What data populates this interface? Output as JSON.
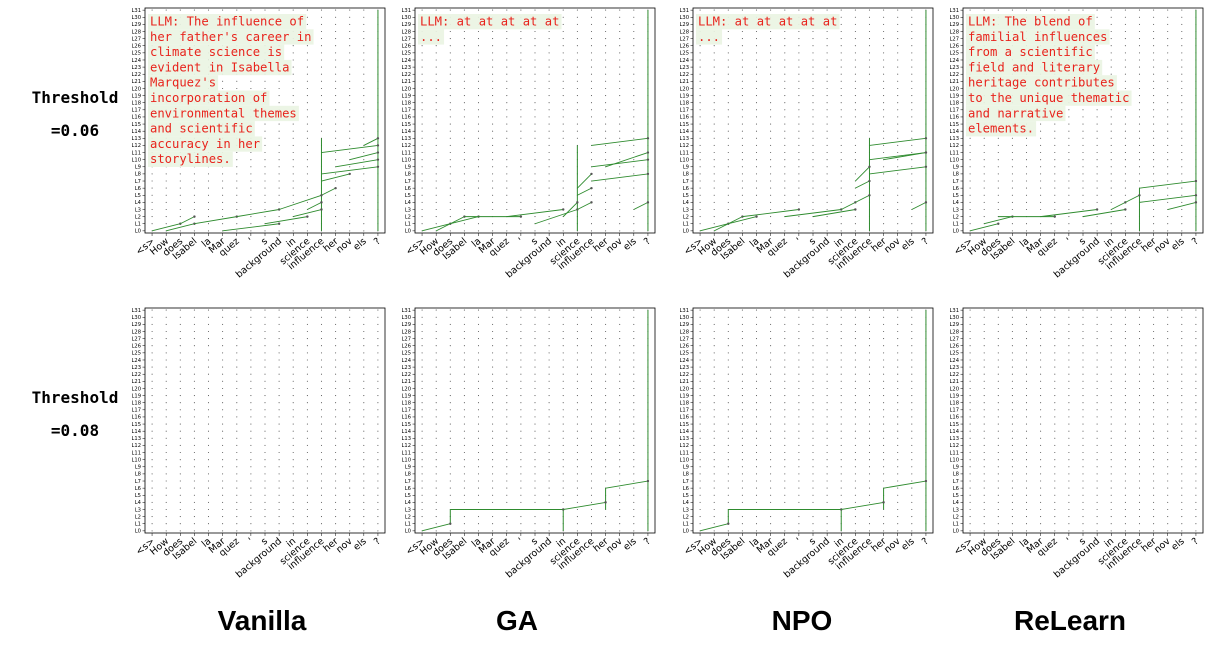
{
  "rows": [
    {
      "label_line1": "Threshold",
      "label_line2": "=0.06"
    },
    {
      "label_line1": "Threshold",
      "label_line2": "=0.08"
    }
  ],
  "columns": [
    "Vanilla",
    "GA",
    "NPO",
    "ReLearn"
  ],
  "colors": {
    "edge": "#2e8b2e",
    "node": "#555555",
    "llm_text": "#e8231c",
    "llm_bg": "#eaf4e3"
  },
  "chart_data": [
    {
      "type": "circuit-graph",
      "method": "Vanilla",
      "threshold": "0.06",
      "x_tokens": [
        "<s>",
        "How",
        "does",
        "Isabel",
        "la",
        "Mar",
        "quez",
        "'",
        "s",
        "background",
        "in",
        "science",
        "influence",
        "her",
        "nov",
        "els",
        "?"
      ],
      "y_layers": [
        "L0",
        "L1",
        "L2",
        "L3",
        "L4",
        "L5",
        "L6",
        "L7",
        "L8",
        "L9",
        "L10",
        "L11",
        "L12",
        "L13",
        "L14",
        "L15",
        "L16",
        "L17",
        "L18",
        "L19",
        "L20",
        "L21",
        "L22",
        "L23",
        "L24",
        "L25",
        "L26",
        "L27",
        "L28",
        "L29",
        "L30",
        "L31"
      ],
      "llm_output": "LLM: The influence of her father's career in climate science is evident in Isabella Marquez's incorporation of environmental themes and scientific accuracy in her storylines.",
      "edges": [
        [
          0,
          0,
          2,
          1
        ],
        [
          1,
          0,
          3,
          1
        ],
        [
          2,
          1,
          3,
          2
        ],
        [
          3,
          1,
          6,
          2
        ],
        [
          5,
          0,
          9,
          1
        ],
        [
          6,
          2,
          9,
          3
        ],
        [
          8,
          1,
          11,
          2
        ],
        [
          10,
          2,
          12,
          3
        ],
        [
          11,
          3,
          12,
          4
        ],
        [
          12,
          5,
          13,
          6
        ],
        [
          12,
          7,
          14,
          8
        ],
        [
          12,
          8,
          16,
          9
        ],
        [
          12,
          11,
          16,
          12
        ],
        [
          13,
          9,
          16,
          10
        ],
        [
          14,
          10,
          16,
          11
        ],
        [
          15,
          12,
          16,
          13
        ],
        [
          9,
          3,
          12,
          5
        ]
      ],
      "vertical_lines": [
        [
          12,
          0,
          12,
          13
        ],
        [
          16,
          0,
          16,
          31
        ]
      ]
    },
    {
      "type": "circuit-graph",
      "method": "GA",
      "threshold": "0.06",
      "x_tokens": [
        "<s>",
        "How",
        "does",
        "Isabel",
        "la",
        "Mar",
        "quez",
        "'",
        "s",
        "background",
        "in",
        "science",
        "influence",
        "her",
        "nov",
        "els",
        "?"
      ],
      "y_layers": [
        "L0",
        "L1",
        "L2",
        "L3",
        "L4",
        "L5",
        "L6",
        "L7",
        "L8",
        "L9",
        "L10",
        "L11",
        "L12",
        "L13",
        "L14",
        "L15",
        "L16",
        "L17",
        "L18",
        "L19",
        "L20",
        "L21",
        "L22",
        "L23",
        "L24",
        "L25",
        "L26",
        "L27",
        "L28",
        "L29",
        "L30",
        "L31"
      ],
      "llm_output": "LLM: at at at at at ...",
      "edges": [
        [
          0,
          0,
          2,
          1
        ],
        [
          1,
          0,
          3,
          2
        ],
        [
          2,
          1,
          4,
          2
        ],
        [
          3,
          2,
          7,
          2
        ],
        [
          6,
          2,
          10,
          3
        ],
        [
          8,
          1,
          11,
          3
        ],
        [
          10,
          2,
          11,
          4
        ],
        [
          11,
          3,
          12,
          4
        ],
        [
          11,
          5,
          12,
          6
        ],
        [
          11,
          6,
          12,
          8
        ],
        [
          12,
          7,
          16,
          8
        ],
        [
          12,
          9,
          16,
          10
        ],
        [
          12,
          12,
          16,
          13
        ],
        [
          13,
          9,
          16,
          11
        ],
        [
          15,
          3,
          16,
          4
        ]
      ],
      "vertical_lines": [
        [
          11,
          0,
          11,
          12
        ],
        [
          16,
          0,
          16,
          31
        ]
      ]
    },
    {
      "type": "circuit-graph",
      "method": "NPO",
      "threshold": "0.06",
      "x_tokens": [
        "<s>",
        "How",
        "does",
        "Isabel",
        "la",
        "Mar",
        "quez",
        "'",
        "s",
        "background",
        "in",
        "science",
        "influence",
        "her",
        "nov",
        "els",
        "?"
      ],
      "y_layers": [
        "L0",
        "L1",
        "L2",
        "L3",
        "L4",
        "L5",
        "L6",
        "L7",
        "L8",
        "L9",
        "L10",
        "L11",
        "L12",
        "L13",
        "L14",
        "L15",
        "L16",
        "L17",
        "L18",
        "L19",
        "L20",
        "L21",
        "L22",
        "L23",
        "L24",
        "L25",
        "L26",
        "L27",
        "L28",
        "L29",
        "L30",
        "L31"
      ],
      "llm_output": "LLM: at at at at at ...",
      "edges": [
        [
          0,
          0,
          2,
          1
        ],
        [
          1,
          0,
          3,
          2
        ],
        [
          2,
          1,
          4,
          2
        ],
        [
          3,
          2,
          7,
          3
        ],
        [
          6,
          2,
          10,
          3
        ],
        [
          8,
          2,
          11,
          3
        ],
        [
          10,
          3,
          11,
          4
        ],
        [
          11,
          4,
          12,
          5
        ],
        [
          11,
          6,
          12,
          7
        ],
        [
          11,
          7,
          12,
          9
        ],
        [
          12,
          8,
          16,
          9
        ],
        [
          12,
          10,
          16,
          11
        ],
        [
          12,
          12,
          16,
          13
        ],
        [
          13,
          10,
          16,
          11
        ],
        [
          15,
          3,
          16,
          4
        ]
      ],
      "vertical_lines": [
        [
          12,
          0,
          12,
          13
        ],
        [
          16,
          0,
          16,
          31
        ]
      ]
    },
    {
      "type": "circuit-graph",
      "method": "ReLearn",
      "threshold": "0.06",
      "x_tokens": [
        "<s>",
        "How",
        "does",
        "Isabel",
        "la",
        "Mar",
        "quez",
        "'",
        "s",
        "background",
        "in",
        "science",
        "influence",
        "her",
        "nov",
        "els",
        "?"
      ],
      "y_layers": [
        "L0",
        "L1",
        "L2",
        "L3",
        "L4",
        "L5",
        "L6",
        "L7",
        "L8",
        "L9",
        "L10",
        "L11",
        "L12",
        "L13",
        "L14",
        "L15",
        "L16",
        "L17",
        "L18",
        "L19",
        "L20",
        "L21",
        "L22",
        "L23",
        "L24",
        "L25",
        "L26",
        "L27",
        "L28",
        "L29",
        "L30",
        "L31"
      ],
      "llm_output": "LLM: The blend of familial influences from a scientific field and literary heritage contributes to the unique thematic and narrative elements.",
      "edges": [
        [
          0,
          0,
          2,
          1
        ],
        [
          1,
          1,
          3,
          2
        ],
        [
          2,
          2,
          6,
          2
        ],
        [
          5,
          2,
          9,
          3
        ],
        [
          8,
          2,
          11,
          3
        ],
        [
          10,
          3,
          11,
          4
        ],
        [
          11,
          4,
          12,
          5
        ],
        [
          12,
          4,
          16,
          5
        ],
        [
          12,
          6,
          16,
          7
        ],
        [
          14,
          3,
          16,
          4
        ]
      ],
      "vertical_lines": [
        [
          12,
          0,
          12,
          6
        ],
        [
          16,
          0,
          16,
          31
        ]
      ]
    },
    {
      "type": "circuit-graph",
      "method": "Vanilla",
      "threshold": "0.08",
      "x_tokens": [
        "<s>",
        "How",
        "does",
        "Isabel",
        "la",
        "Mar",
        "quez",
        "'",
        "s",
        "background",
        "in",
        "science",
        "influence",
        "her",
        "nov",
        "els",
        "?"
      ],
      "y_layers": [
        "L0",
        "L1",
        "L2",
        "L3",
        "L4",
        "L5",
        "L6",
        "L7",
        "L8",
        "L9",
        "L10",
        "L11",
        "L12",
        "L13",
        "L14",
        "L15",
        "L16",
        "L17",
        "L18",
        "L19",
        "L20",
        "L21",
        "L22",
        "L23",
        "L24",
        "L25",
        "L26",
        "L27",
        "L28",
        "L29",
        "L30",
        "L31"
      ],
      "llm_output": "",
      "edges": [],
      "vertical_lines": []
    },
    {
      "type": "circuit-graph",
      "method": "GA",
      "threshold": "0.08",
      "x_tokens": [
        "<s>",
        "How",
        "does",
        "Isabel",
        "la",
        "Mar",
        "quez",
        "'",
        "s",
        "background",
        "in",
        "science",
        "influence",
        "her",
        "nov",
        "els",
        "?"
      ],
      "y_layers": [
        "L0",
        "L1",
        "L2",
        "L3",
        "L4",
        "L5",
        "L6",
        "L7",
        "L8",
        "L9",
        "L10",
        "L11",
        "L12",
        "L13",
        "L14",
        "L15",
        "L16",
        "L17",
        "L18",
        "L19",
        "L20",
        "L21",
        "L22",
        "L23",
        "L24",
        "L25",
        "L26",
        "L27",
        "L28",
        "L29",
        "L30",
        "L31"
      ],
      "llm_output": "",
      "edges": [
        [
          0,
          0,
          2,
          1
        ],
        [
          2,
          3,
          10,
          3
        ],
        [
          10,
          3,
          13,
          4
        ],
        [
          13,
          6,
          16,
          7
        ]
      ],
      "vertical_lines": [
        [
          2,
          1,
          2,
          3
        ],
        [
          10,
          0,
          10,
          3
        ],
        [
          13,
          3,
          13,
          6
        ],
        [
          16,
          0,
          16,
          31
        ]
      ]
    },
    {
      "type": "circuit-graph",
      "method": "NPO",
      "threshold": "0.08",
      "x_tokens": [
        "<s>",
        "How",
        "does",
        "Isabel",
        "la",
        "Mar",
        "quez",
        "'",
        "s",
        "background",
        "in",
        "science",
        "influence",
        "her",
        "nov",
        "els",
        "?"
      ],
      "y_layers": [
        "L0",
        "L1",
        "L2",
        "L3",
        "L4",
        "L5",
        "L6",
        "L7",
        "L8",
        "L9",
        "L10",
        "L11",
        "L12",
        "L13",
        "L14",
        "L15",
        "L16",
        "L17",
        "L18",
        "L19",
        "L20",
        "L21",
        "L22",
        "L23",
        "L24",
        "L25",
        "L26",
        "L27",
        "L28",
        "L29",
        "L30",
        "L31"
      ],
      "llm_output": "",
      "edges": [
        [
          0,
          0,
          2,
          1
        ],
        [
          2,
          3,
          10,
          3
        ],
        [
          10,
          3,
          13,
          4
        ],
        [
          13,
          6,
          16,
          7
        ]
      ],
      "vertical_lines": [
        [
          2,
          1,
          2,
          3
        ],
        [
          10,
          0,
          10,
          3
        ],
        [
          13,
          3,
          13,
          6
        ],
        [
          16,
          0,
          16,
          31
        ]
      ]
    },
    {
      "type": "circuit-graph",
      "method": "ReLearn",
      "threshold": "0.08",
      "x_tokens": [
        "<s>",
        "How",
        "does",
        "Isabel",
        "la",
        "Mar",
        "quez",
        "'",
        "s",
        "background",
        "in",
        "science",
        "influence",
        "her",
        "nov",
        "els",
        "?"
      ],
      "y_layers": [
        "L0",
        "L1",
        "L2",
        "L3",
        "L4",
        "L5",
        "L6",
        "L7",
        "L8",
        "L9",
        "L10",
        "L11",
        "L12",
        "L13",
        "L14",
        "L15",
        "L16",
        "L17",
        "L18",
        "L19",
        "L20",
        "L21",
        "L22",
        "L23",
        "L24",
        "L25",
        "L26",
        "L27",
        "L28",
        "L29",
        "L30",
        "L31"
      ],
      "llm_output": "",
      "edges": [],
      "vertical_lines": []
    }
  ]
}
